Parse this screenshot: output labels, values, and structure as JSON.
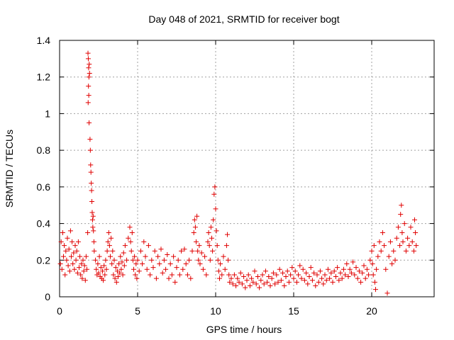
{
  "chart_data": {
    "type": "scatter",
    "title": "Day 048 of 2021, SRMTID for receiver bogt",
    "xlabel": "GPS time / hours",
    "ylabel": "SRMTID / TECUs",
    "xlim": [
      0,
      24
    ],
    "ylim": [
      0,
      1.4
    ],
    "xticks": [
      "0",
      "5",
      "10",
      "15",
      "20"
    ],
    "xtick_values": [
      0,
      5,
      10,
      15,
      20
    ],
    "yticks": [
      "0",
      "0.2",
      "0.4",
      "0.6",
      "0.8",
      "1",
      "1.2",
      "1.4"
    ],
    "ytick_values": [
      0,
      0.2,
      0.4,
      0.6,
      0.8,
      1.0,
      1.2,
      1.4
    ],
    "grid": true,
    "marker": "plus",
    "series_color": "#e00000",
    "series": [
      {
        "name": "SRMTID",
        "points": [
          [
            0.05,
            0.18
          ],
          [
            0.1,
            0.3
          ],
          [
            0.15,
            0.15
          ],
          [
            0.2,
            0.35
          ],
          [
            0.25,
            0.22
          ],
          [
            0.3,
            0.28
          ],
          [
            0.35,
            0.12
          ],
          [
            0.4,
            0.25
          ],
          [
            0.45,
            0.2
          ],
          [
            0.5,
            0.32
          ],
          [
            0.55,
            0.17
          ],
          [
            0.6,
            0.26
          ],
          [
            0.65,
            0.14
          ],
          [
            0.7,
            0.36
          ],
          [
            0.75,
            0.22
          ],
          [
            0.8,
            0.3
          ],
          [
            0.85,
            0.18
          ],
          [
            0.9,
            0.24
          ],
          [
            0.95,
            0.15
          ],
          [
            1.0,
            0.28
          ],
          [
            1.05,
            0.2
          ],
          [
            1.1,
            0.25
          ],
          [
            1.15,
            0.13
          ],
          [
            1.2,
            0.3
          ],
          [
            1.25,
            0.16
          ],
          [
            1.3,
            0.22
          ],
          [
            1.35,
            0.12
          ],
          [
            1.4,
            0.18
          ],
          [
            1.45,
            0.1
          ],
          [
            1.5,
            0.2
          ],
          [
            1.55,
            0.14
          ],
          [
            1.6,
            0.17
          ],
          [
            1.65,
            0.09
          ],
          [
            1.7,
            0.22
          ],
          [
            1.75,
            0.15
          ],
          [
            1.8,
            0.35
          ],
          [
            1.82,
            1.33
          ],
          [
            1.84,
            1.3
          ],
          [
            1.86,
            1.25
          ],
          [
            1.88,
            1.2
          ],
          [
            1.85,
            1.15
          ],
          [
            1.87,
            1.1
          ],
          [
            1.9,
            1.27
          ],
          [
            1.92,
            1.22
          ],
          [
            1.83,
            1.06
          ],
          [
            1.89,
            0.95
          ],
          [
            1.95,
            0.86
          ],
          [
            1.97,
            0.8
          ],
          [
            1.99,
            0.72
          ],
          [
            2.01,
            0.68
          ],
          [
            2.03,
            0.62
          ],
          [
            2.05,
            0.58
          ],
          [
            2.07,
            0.52
          ],
          [
            2.09,
            0.46
          ],
          [
            2.11,
            0.42
          ],
          [
            2.13,
            0.38
          ],
          [
            2.15,
            0.44
          ],
          [
            2.17,
            0.36
          ],
          [
            2.2,
            0.3
          ],
          [
            2.22,
            0.25
          ],
          [
            2.3,
            0.2
          ],
          [
            2.35,
            0.15
          ],
          [
            2.4,
            0.12
          ],
          [
            2.45,
            0.18
          ],
          [
            2.5,
            0.13
          ],
          [
            2.55,
            0.22
          ],
          [
            2.6,
            0.11
          ],
          [
            2.65,
            0.16
          ],
          [
            2.7,
            0.1
          ],
          [
            2.75,
            0.14
          ],
          [
            2.8,
            0.09
          ],
          [
            2.85,
            0.17
          ],
          [
            2.9,
            0.12
          ],
          [
            2.95,
            0.2
          ],
          [
            3.0,
            0.15
          ],
          [
            3.05,
            0.25
          ],
          [
            3.1,
            0.3
          ],
          [
            3.15,
            0.35
          ],
          [
            3.2,
            0.28
          ],
          [
            3.25,
            0.22
          ],
          [
            3.3,
            0.32
          ],
          [
            3.35,
            0.18
          ],
          [
            3.4,
            0.25
          ],
          [
            3.45,
            0.12
          ],
          [
            3.5,
            0.2
          ],
          [
            3.55,
            0.1
          ],
          [
            3.6,
            0.16
          ],
          [
            3.65,
            0.08
          ],
          [
            3.7,
            0.14
          ],
          [
            3.75,
            0.11
          ],
          [
            3.8,
            0.18
          ],
          [
            3.85,
            0.13
          ],
          [
            3.9,
            0.22
          ],
          [
            3.95,
            0.15
          ],
          [
            4.0,
            0.19
          ],
          [
            4.05,
            0.12
          ],
          [
            4.1,
            0.24
          ],
          [
            4.15,
            0.17
          ],
          [
            4.2,
            0.28
          ],
          [
            4.3,
            0.2
          ],
          [
            4.4,
            0.32
          ],
          [
            4.5,
            0.38
          ],
          [
            4.55,
            0.3
          ],
          [
            4.6,
            0.25
          ],
          [
            4.65,
            0.35
          ],
          [
            4.7,
            0.2
          ],
          [
            4.75,
            0.15
          ],
          [
            4.8,
            0.22
          ],
          [
            4.85,
            0.12
          ],
          [
            4.9,
            0.18
          ],
          [
            4.95,
            0.1
          ],
          [
            5.0,
            0.2
          ],
          [
            5.1,
            0.14
          ],
          [
            5.2,
            0.25
          ],
          [
            5.3,
            0.18
          ],
          [
            5.4,
            0.3
          ],
          [
            5.5,
            0.22
          ],
          [
            5.6,
            0.15
          ],
          [
            5.7,
            0.28
          ],
          [
            5.8,
            0.12
          ],
          [
            5.9,
            0.2
          ],
          [
            6.0,
            0.16
          ],
          [
            6.1,
            0.25
          ],
          [
            6.2,
            0.1
          ],
          [
            6.3,
            0.22
          ],
          [
            6.4,
            0.18
          ],
          [
            6.5,
            0.26
          ],
          [
            6.6,
            0.13
          ],
          [
            6.7,
            0.2
          ],
          [
            6.8,
            0.15
          ],
          [
            6.9,
            0.23
          ],
          [
            7.0,
            0.1
          ],
          [
            7.1,
            0.18
          ],
          [
            7.2,
            0.12
          ],
          [
            7.3,
            0.22
          ],
          [
            7.4,
            0.08
          ],
          [
            7.5,
            0.16
          ],
          [
            7.6,
            0.2
          ],
          [
            7.7,
            0.12
          ],
          [
            7.8,
            0.25
          ],
          [
            7.9,
            0.15
          ],
          [
            8.0,
            0.26
          ],
          [
            8.1,
            0.18
          ],
          [
            8.2,
            0.12
          ],
          [
            8.3,
            0.2
          ],
          [
            8.4,
            0.1
          ],
          [
            8.5,
            0.25
          ],
          [
            8.6,
            0.35
          ],
          [
            8.65,
            0.42
          ],
          [
            8.7,
            0.38
          ],
          [
            8.75,
            0.3
          ],
          [
            8.8,
            0.44
          ],
          [
            8.85,
            0.25
          ],
          [
            8.9,
            0.2
          ],
          [
            8.95,
            0.28
          ],
          [
            9.0,
            0.18
          ],
          [
            9.1,
            0.24
          ],
          [
            9.2,
            0.15
          ],
          [
            9.3,
            0.22
          ],
          [
            9.4,
            0.12
          ],
          [
            9.5,
            0.3
          ],
          [
            9.55,
            0.35
          ],
          [
            9.6,
            0.28
          ],
          [
            9.65,
            0.2
          ],
          [
            9.7,
            0.38
          ],
          [
            9.75,
            0.32
          ],
          [
            9.8,
            0.25
          ],
          [
            9.85,
            0.42
          ],
          [
            9.9,
            0.56
          ],
          [
            9.95,
            0.6
          ],
          [
            10.0,
            0.48
          ],
          [
            10.05,
            0.36
          ],
          [
            10.1,
            0.28
          ],
          [
            10.15,
            0.2
          ],
          [
            10.2,
            0.14
          ],
          [
            10.25,
            0.1
          ],
          [
            10.3,
            0.18
          ],
          [
            10.4,
            0.12
          ],
          [
            10.5,
            0.22
          ],
          [
            10.6,
            0.15
          ],
          [
            10.7,
            0.28
          ],
          [
            10.75,
            0.34
          ],
          [
            10.8,
            0.2
          ],
          [
            10.85,
            0.12
          ],
          [
            10.9,
            0.08
          ],
          [
            11.0,
            0.1
          ],
          [
            11.1,
            0.07
          ],
          [
            11.2,
            0.12
          ],
          [
            11.3,
            0.06
          ],
          [
            11.4,
            0.1
          ],
          [
            11.5,
            0.08
          ],
          [
            11.6,
            0.13
          ],
          [
            11.7,
            0.07
          ],
          [
            11.8,
            0.11
          ],
          [
            11.9,
            0.05
          ],
          [
            12.0,
            0.09
          ],
          [
            12.1,
            0.12
          ],
          [
            12.2,
            0.06
          ],
          [
            12.3,
            0.1
          ],
          [
            12.4,
            0.08
          ],
          [
            12.5,
            0.14
          ],
          [
            12.6,
            0.07
          ],
          [
            12.7,
            0.11
          ],
          [
            12.8,
            0.05
          ],
          [
            12.9,
            0.09
          ],
          [
            13.0,
            0.12
          ],
          [
            13.1,
            0.07
          ],
          [
            13.2,
            0.14
          ],
          [
            13.3,
            0.08
          ],
          [
            13.4,
            0.11
          ],
          [
            13.5,
            0.06
          ],
          [
            13.6,
            0.1
          ],
          [
            13.7,
            0.13
          ],
          [
            13.8,
            0.07
          ],
          [
            13.9,
            0.12
          ],
          [
            14.0,
            0.08
          ],
          [
            14.1,
            0.15
          ],
          [
            14.2,
            0.09
          ],
          [
            14.3,
            0.13
          ],
          [
            14.4,
            0.06
          ],
          [
            14.5,
            0.11
          ],
          [
            14.6,
            0.14
          ],
          [
            14.7,
            0.08
          ],
          [
            14.8,
            0.12
          ],
          [
            14.9,
            0.16
          ],
          [
            15.0,
            0.1
          ],
          [
            15.1,
            0.14
          ],
          [
            15.2,
            0.08
          ],
          [
            15.3,
            0.12
          ],
          [
            15.4,
            0.17
          ],
          [
            15.5,
            0.1
          ],
          [
            15.6,
            0.15
          ],
          [
            15.7,
            0.09
          ],
          [
            15.8,
            0.13
          ],
          [
            15.9,
            0.07
          ],
          [
            16.0,
            0.11
          ],
          [
            16.1,
            0.16
          ],
          [
            16.2,
            0.09
          ],
          [
            16.3,
            0.13
          ],
          [
            16.4,
            0.06
          ],
          [
            16.5,
            0.12
          ],
          [
            16.6,
            0.08
          ],
          [
            16.7,
            0.14
          ],
          [
            16.8,
            0.1
          ],
          [
            16.9,
            0.07
          ],
          [
            17.0,
            0.12
          ],
          [
            17.1,
            0.09
          ],
          [
            17.2,
            0.15
          ],
          [
            17.3,
            0.1
          ],
          [
            17.4,
            0.13
          ],
          [
            17.5,
            0.08
          ],
          [
            17.6,
            0.14
          ],
          [
            17.7,
            0.11
          ],
          [
            17.8,
            0.16
          ],
          [
            17.9,
            0.09
          ],
          [
            18.0,
            0.13
          ],
          [
            18.1,
            0.1
          ],
          [
            18.2,
            0.15
          ],
          [
            18.3,
            0.12
          ],
          [
            18.4,
            0.18
          ],
          [
            18.5,
            0.11
          ],
          [
            18.6,
            0.15
          ],
          [
            18.7,
            0.13
          ],
          [
            18.8,
            0.19
          ],
          [
            18.9,
            0.12
          ],
          [
            19.0,
            0.16
          ],
          [
            19.1,
            0.1
          ],
          [
            19.2,
            0.14
          ],
          [
            19.3,
            0.08
          ],
          [
            19.4,
            0.13
          ],
          [
            19.5,
            0.17
          ],
          [
            19.6,
            0.1
          ],
          [
            19.7,
            0.15
          ],
          [
            19.8,
            0.12
          ],
          [
            19.9,
            0.2
          ],
          [
            20.0,
            0.25
          ],
          [
            20.05,
            0.18
          ],
          [
            20.1,
            0.12
          ],
          [
            20.15,
            0.28
          ],
          [
            20.2,
            0.08
          ],
          [
            20.25,
            0.04
          ],
          [
            20.3,
            0.15
          ],
          [
            20.4,
            0.22
          ],
          [
            20.5,
            0.3
          ],
          [
            20.6,
            0.25
          ],
          [
            20.7,
            0.35
          ],
          [
            20.8,
            0.28
          ],
          [
            20.9,
            0.15
          ],
          [
            21.0,
            0.02
          ],
          [
            21.1,
            0.22
          ],
          [
            21.2,
            0.3
          ],
          [
            21.3,
            0.18
          ],
          [
            21.4,
            0.25
          ],
          [
            21.5,
            0.2
          ],
          [
            21.6,
            0.32
          ],
          [
            21.7,
            0.38
          ],
          [
            21.8,
            0.28
          ],
          [
            21.85,
            0.45
          ],
          [
            21.9,
            0.5
          ],
          [
            21.95,
            0.35
          ],
          [
            22.0,
            0.3
          ],
          [
            22.1,
            0.4
          ],
          [
            22.2,
            0.25
          ],
          [
            22.3,
            0.32
          ],
          [
            22.4,
            0.28
          ],
          [
            22.5,
            0.38
          ],
          [
            22.6,
            0.3
          ],
          [
            22.7,
            0.25
          ],
          [
            22.75,
            0.42
          ],
          [
            22.8,
            0.35
          ],
          [
            22.85,
            0.28
          ]
        ]
      }
    ]
  }
}
